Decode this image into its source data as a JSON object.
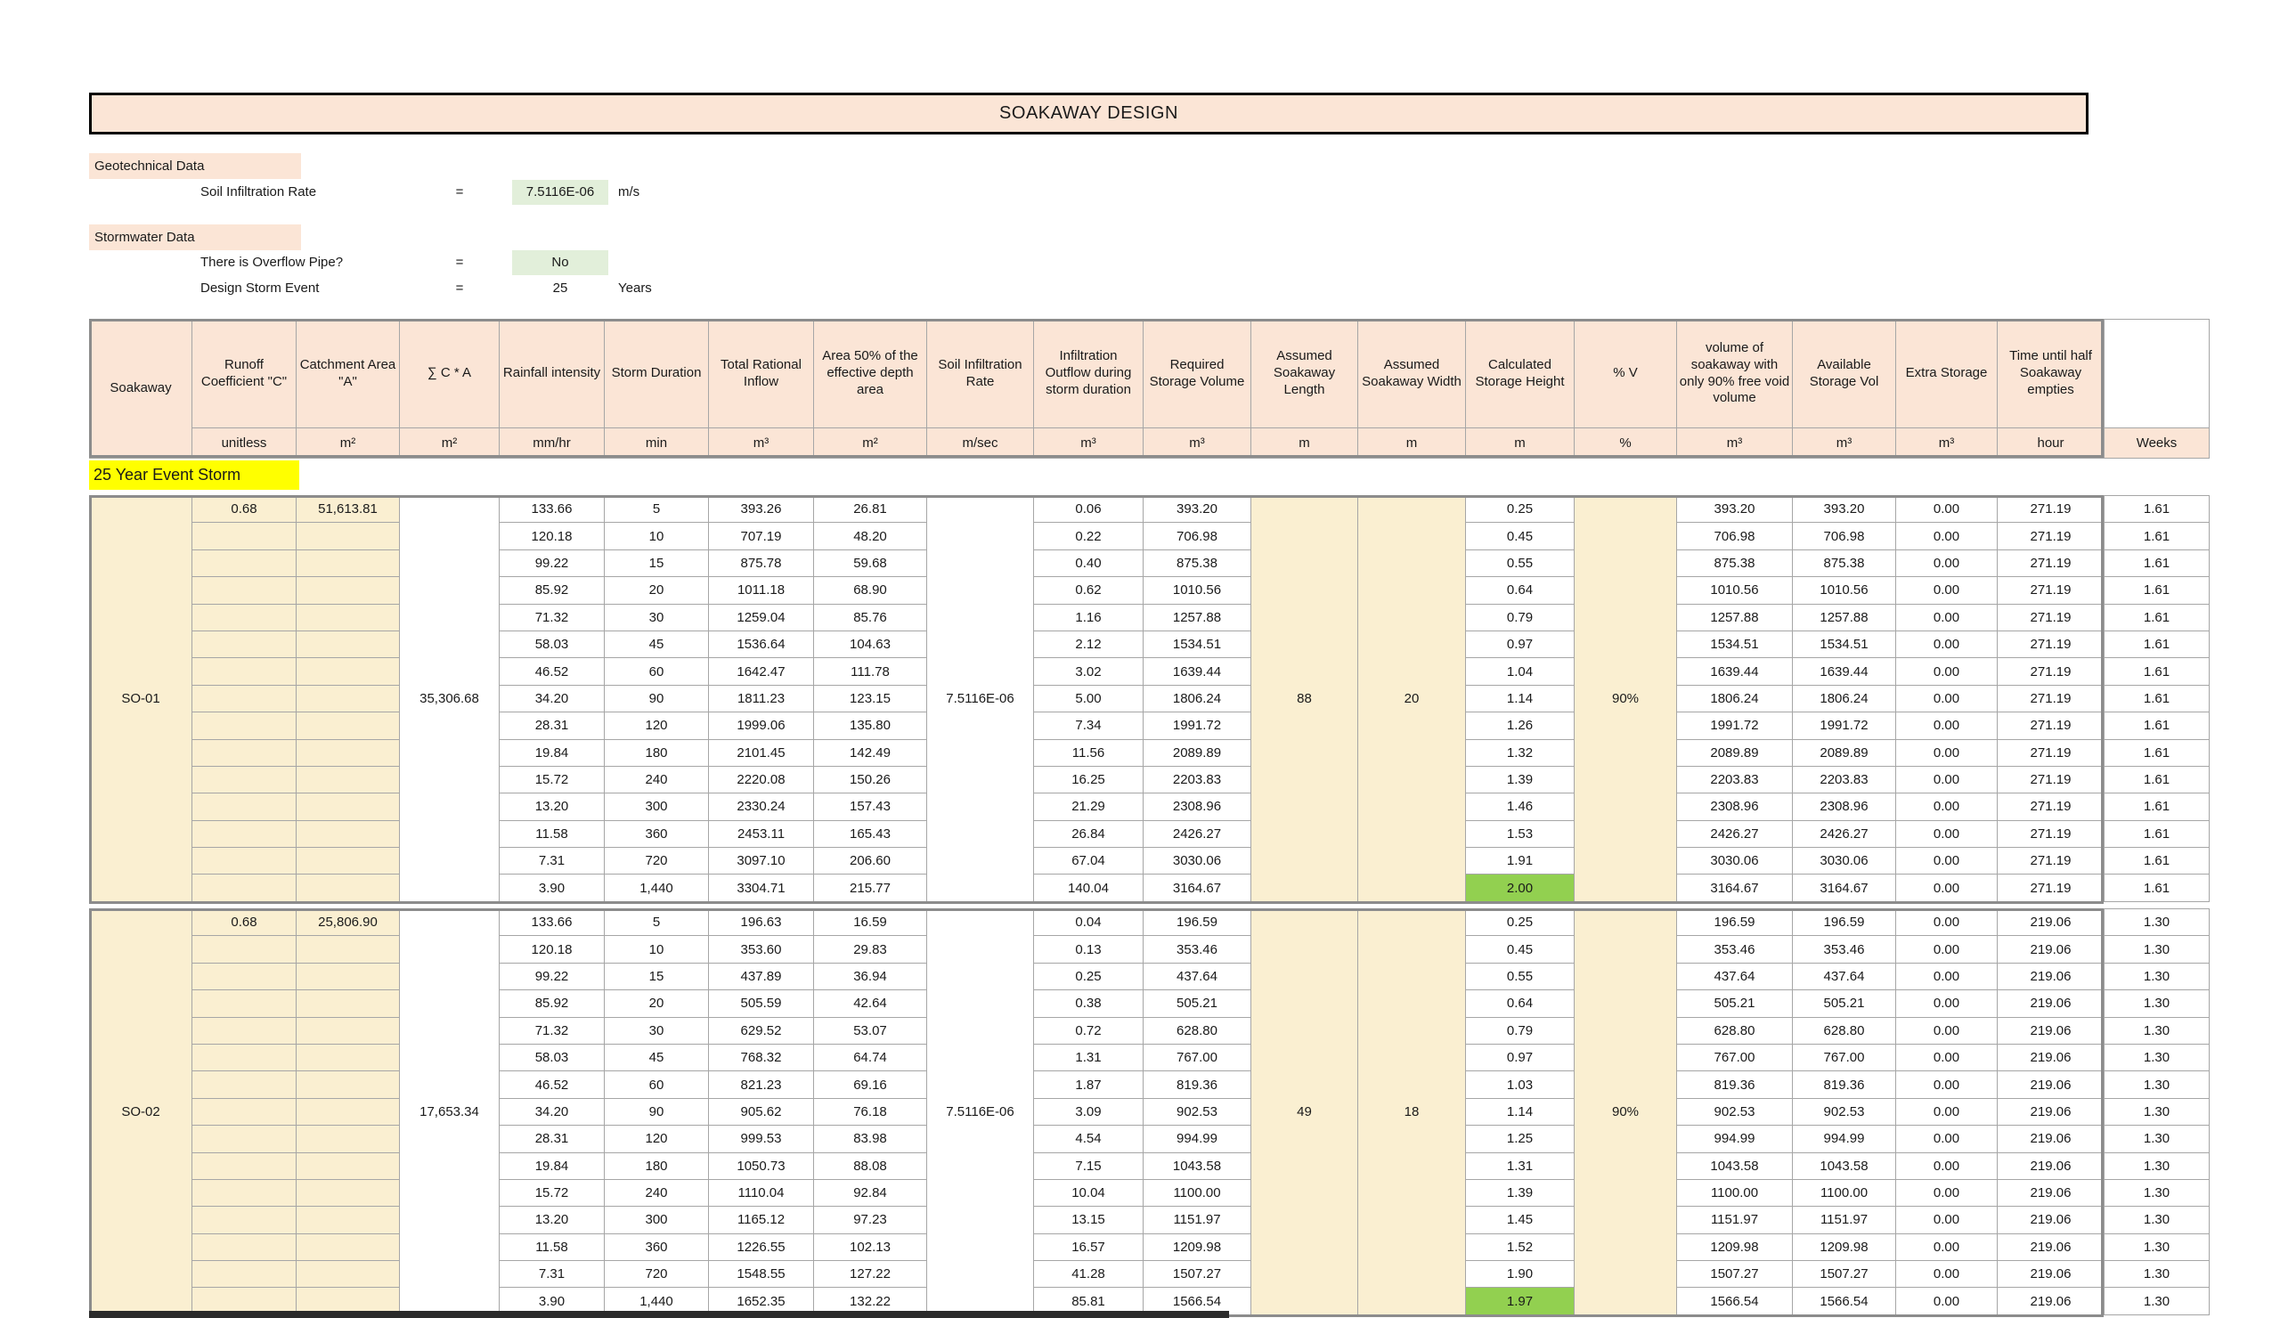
{
  "title": "SOAKAWAY DESIGN",
  "geotechnical": {
    "label": "Geotechnical Data",
    "field_label": "Soil Infiltration Rate",
    "eq": "=",
    "value": "7.5116E-06",
    "unit": "m/s"
  },
  "stormwater": {
    "label": "Stormwater Data",
    "fields": [
      {
        "label": "There is Overflow Pipe?",
        "eq": "=",
        "value": "No",
        "unit": ""
      },
      {
        "label": "Design Storm Event",
        "eq": "=",
        "value": "25",
        "unit": "Years"
      }
    ]
  },
  "event_label": "25 Year Event Storm",
  "colors": {
    "header_peach": "#FBE5D6",
    "cell_beige": "#FAEFD1",
    "highlight_green": "#92D050",
    "input_green": "#E2EFDA",
    "label_yellow": "#FFFF00"
  },
  "table": {
    "columns": [
      "Soakaway",
      "Runoff Coefficient \"C\"",
      "Catchment Area \"A\"",
      "∑ C * A",
      "Rainfall intensity",
      "Storm Duration",
      "Total Rational Inflow",
      "Area 50% of the effective depth area",
      "Soil Infiltration Rate",
      "Infiltration Outflow during storm duration",
      "Required Storage Volume",
      "Assumed Soakaway Length",
      "Assumed Soakaway Width",
      "Calculated Storage Height",
      "% V",
      "volume of soakaway with only 90% free void volume",
      "Available Storage Vol",
      "Extra Storage",
      "Time until half Soakaway empties",
      ""
    ],
    "units": [
      "",
      "unitless",
      "m²",
      "m²",
      "mm/hr",
      "min",
      "m³",
      "m²",
      "m/sec",
      "m³",
      "m³",
      "m",
      "m",
      "m",
      "%",
      "m³",
      "m³",
      "m³",
      "hour",
      "Weeks"
    ],
    "sections": [
      {
        "soakaway": "SO-01",
        "runoff_coefficient": "0.68",
        "catchment_area": "51,613.81",
        "sum_ca": "35,306.68",
        "soil_infiltration_rate": "7.5116E-06",
        "assumed_length": "88",
        "assumed_width": "20",
        "percent_v": "90%",
        "rows": [
          [
            "133.66",
            "5",
            "393.26",
            "26.81",
            "0.06",
            "393.20",
            "0.25",
            "393.20",
            "393.20",
            "0.00",
            "271.19",
            "1.61"
          ],
          [
            "120.18",
            "10",
            "707.19",
            "48.20",
            "0.22",
            "706.98",
            "0.45",
            "706.98",
            "706.98",
            "0.00",
            "271.19",
            "1.61"
          ],
          [
            "99.22",
            "15",
            "875.78",
            "59.68",
            "0.40",
            "875.38",
            "0.55",
            "875.38",
            "875.38",
            "0.00",
            "271.19",
            "1.61"
          ],
          [
            "85.92",
            "20",
            "1011.18",
            "68.90",
            "0.62",
            "1010.56",
            "0.64",
            "1010.56",
            "1010.56",
            "0.00",
            "271.19",
            "1.61"
          ],
          [
            "71.32",
            "30",
            "1259.04",
            "85.76",
            "1.16",
            "1257.88",
            "0.79",
            "1257.88",
            "1257.88",
            "0.00",
            "271.19",
            "1.61"
          ],
          [
            "58.03",
            "45",
            "1536.64",
            "104.63",
            "2.12",
            "1534.51",
            "0.97",
            "1534.51",
            "1534.51",
            "0.00",
            "271.19",
            "1.61"
          ],
          [
            "46.52",
            "60",
            "1642.47",
            "111.78",
            "3.02",
            "1639.44",
            "1.04",
            "1639.44",
            "1639.44",
            "0.00",
            "271.19",
            "1.61"
          ],
          [
            "34.20",
            "90",
            "1811.23",
            "123.15",
            "5.00",
            "1806.24",
            "1.14",
            "1806.24",
            "1806.24",
            "0.00",
            "271.19",
            "1.61"
          ],
          [
            "28.31",
            "120",
            "1999.06",
            "135.80",
            "7.34",
            "1991.72",
            "1.26",
            "1991.72",
            "1991.72",
            "0.00",
            "271.19",
            "1.61"
          ],
          [
            "19.84",
            "180",
            "2101.45",
            "142.49",
            "11.56",
            "2089.89",
            "1.32",
            "2089.89",
            "2089.89",
            "0.00",
            "271.19",
            "1.61"
          ],
          [
            "15.72",
            "240",
            "2220.08",
            "150.26",
            "16.25",
            "2203.83",
            "1.39",
            "2203.83",
            "2203.83",
            "0.00",
            "271.19",
            "1.61"
          ],
          [
            "13.20",
            "300",
            "2330.24",
            "157.43",
            "21.29",
            "2308.96",
            "1.46",
            "2308.96",
            "2308.96",
            "0.00",
            "271.19",
            "1.61"
          ],
          [
            "11.58",
            "360",
            "2453.11",
            "165.43",
            "26.84",
            "2426.27",
            "1.53",
            "2426.27",
            "2426.27",
            "0.00",
            "271.19",
            "1.61"
          ],
          [
            "7.31",
            "720",
            "3097.10",
            "206.60",
            "67.04",
            "3030.06",
            "1.91",
            "3030.06",
            "3030.06",
            "0.00",
            "271.19",
            "1.61"
          ],
          [
            "3.90",
            "1,440",
            "3304.71",
            "215.77",
            "140.04",
            "3164.67",
            "2.00",
            "3164.67",
            "3164.67",
            "0.00",
            "271.19",
            "1.61"
          ]
        ]
      },
      {
        "soakaway": "SO-02",
        "runoff_coefficient": "0.68",
        "catchment_area": "25,806.90",
        "sum_ca": "17,653.34",
        "soil_infiltration_rate": "7.5116E-06",
        "assumed_length": "49",
        "assumed_width": "18",
        "percent_v": "90%",
        "rows": [
          [
            "133.66",
            "5",
            "196.63",
            "16.59",
            "0.04",
            "196.59",
            "0.25",
            "196.59",
            "196.59",
            "0.00",
            "219.06",
            "1.30"
          ],
          [
            "120.18",
            "10",
            "353.60",
            "29.83",
            "0.13",
            "353.46",
            "0.45",
            "353.46",
            "353.46",
            "0.00",
            "219.06",
            "1.30"
          ],
          [
            "99.22",
            "15",
            "437.89",
            "36.94",
            "0.25",
            "437.64",
            "0.55",
            "437.64",
            "437.64",
            "0.00",
            "219.06",
            "1.30"
          ],
          [
            "85.92",
            "20",
            "505.59",
            "42.64",
            "0.38",
            "505.21",
            "0.64",
            "505.21",
            "505.21",
            "0.00",
            "219.06",
            "1.30"
          ],
          [
            "71.32",
            "30",
            "629.52",
            "53.07",
            "0.72",
            "628.80",
            "0.79",
            "628.80",
            "628.80",
            "0.00",
            "219.06",
            "1.30"
          ],
          [
            "58.03",
            "45",
            "768.32",
            "64.74",
            "1.31",
            "767.00",
            "0.97",
            "767.00",
            "767.00",
            "0.00",
            "219.06",
            "1.30"
          ],
          [
            "46.52",
            "60",
            "821.23",
            "69.16",
            "1.87",
            "819.36",
            "1.03",
            "819.36",
            "819.36",
            "0.00",
            "219.06",
            "1.30"
          ],
          [
            "34.20",
            "90",
            "905.62",
            "76.18",
            "3.09",
            "902.53",
            "1.14",
            "902.53",
            "902.53",
            "0.00",
            "219.06",
            "1.30"
          ],
          [
            "28.31",
            "120",
            "999.53",
            "83.98",
            "4.54",
            "994.99",
            "1.25",
            "994.99",
            "994.99",
            "0.00",
            "219.06",
            "1.30"
          ],
          [
            "19.84",
            "180",
            "1050.73",
            "88.08",
            "7.15",
            "1043.58",
            "1.31",
            "1043.58",
            "1043.58",
            "0.00",
            "219.06",
            "1.30"
          ],
          [
            "15.72",
            "240",
            "1110.04",
            "92.84",
            "10.04",
            "1100.00",
            "1.39",
            "1100.00",
            "1100.00",
            "0.00",
            "219.06",
            "1.30"
          ],
          [
            "13.20",
            "300",
            "1165.12",
            "97.23",
            "13.15",
            "1151.97",
            "1.45",
            "1151.97",
            "1151.97",
            "0.00",
            "219.06",
            "1.30"
          ],
          [
            "11.58",
            "360",
            "1226.55",
            "102.13",
            "16.57",
            "1209.98",
            "1.52",
            "1209.98",
            "1209.98",
            "0.00",
            "219.06",
            "1.30"
          ],
          [
            "7.31",
            "720",
            "1548.55",
            "127.22",
            "41.28",
            "1507.27",
            "1.90",
            "1507.27",
            "1507.27",
            "0.00",
            "219.06",
            "1.30"
          ],
          [
            "3.90",
            "1,440",
            "1652.35",
            "132.22",
            "85.81",
            "1566.54",
            "1.97",
            "1566.54",
            "1566.54",
            "0.00",
            "219.06",
            "1.30"
          ]
        ]
      }
    ]
  }
}
